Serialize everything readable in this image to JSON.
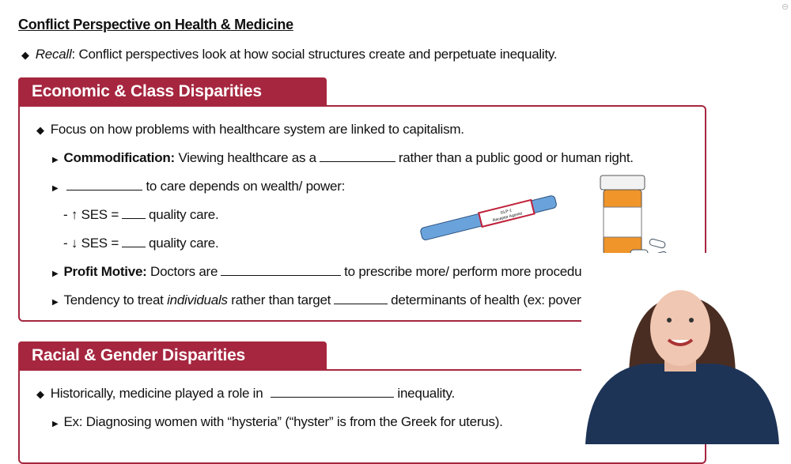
{
  "title": "Conflict Perspective on Health & Medicine",
  "recall": {
    "label": "Recall",
    "text": ": Conflict perspectives look at how social structures create and perpetuate inequality."
  },
  "section1": {
    "header": "Economic & Class Disparities",
    "focus": "Focus on how problems with healthcare system are linked to capitalism.",
    "commod_label": "Commodification:",
    "commod_a": "Viewing healthcare as a",
    "commod_b": "rather than a public good or human right.",
    "access_b": "to care depends on wealth/ power:",
    "ses_up": "- ↑ SES =",
    "ses_down": "- ↓ SES =",
    "ses_tail": "quality care.",
    "profit_label": "Profit Motive:",
    "profit_a": "Doctors are",
    "profit_b": "to prescribe more/ perform more procedures.",
    "tend_a": "Tendency to treat",
    "tend_i": "individuals",
    "tend_b": "rather than target",
    "tend_c": "determinants of health (ex: poverty).",
    "pen_label_1": "GLP-1",
    "pen_label_2": "Receptor Agonist"
  },
  "section2": {
    "header": "Racial & Gender Disparities",
    "hist_a": "Historically, medicine played a role in",
    "hist_b": "inequality.",
    "ex": "Ex: Diagnosing women with “hysteria” (“hyster” is from the Greek for uterus)."
  },
  "colors": {
    "accent": "#a6263f",
    "pen": "#6aa3dc",
    "bottle": "#f0952a"
  }
}
